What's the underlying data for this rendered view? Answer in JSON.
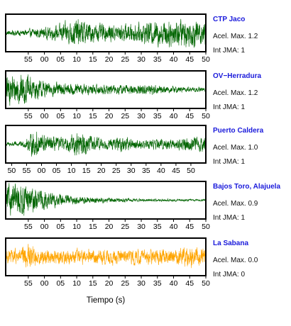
{
  "chart_data": {
    "type": "line",
    "xlabel": "Tiempo (s)",
    "grid": false,
    "panels": [
      {
        "station": "CTP Jaco",
        "accel_label": "Acel. Max. 1.2",
        "intensity_label": "Int JMA: 1",
        "color": "#006400",
        "tick_labels": [
          "55",
          "00",
          "05",
          "10",
          "15",
          "20",
          "25",
          "30",
          "35",
          "40",
          "45",
          "50"
        ],
        "x_range_s": [
          -7,
          55
        ],
        "amplitude_envelope": [
          [
            0,
            0.15
          ],
          [
            7,
            0.25
          ],
          [
            15,
            0.45
          ],
          [
            22,
            0.95
          ],
          [
            28,
            0.6
          ],
          [
            35,
            0.55
          ],
          [
            42,
            0.65
          ],
          [
            48,
            0.9
          ],
          [
            55,
            0.95
          ],
          [
            62,
            0.85
          ]
        ],
        "peak_amplitude": 0.95
      },
      {
        "station": "OV−Herradura",
        "accel_label": "Acel. Max. 1.2",
        "intensity_label": "Int JMA: 1",
        "color": "#006400",
        "tick_labels": [
          "55",
          "00",
          "05",
          "10",
          "15",
          "20",
          "25",
          "30",
          "35",
          "40",
          "45",
          "50"
        ],
        "x_range_s": [
          -7,
          55
        ],
        "amplitude_envelope": [
          [
            0,
            0.9
          ],
          [
            4,
            1.0
          ],
          [
            8,
            0.8
          ],
          [
            12,
            0.5
          ],
          [
            18,
            0.4
          ],
          [
            25,
            0.35
          ],
          [
            32,
            0.3
          ],
          [
            38,
            0.3
          ],
          [
            44,
            0.35
          ],
          [
            50,
            0.22
          ],
          [
            62,
            0.15
          ]
        ],
        "peak_amplitude": 1.0
      },
      {
        "station": "Puerto Caldera",
        "accel_label": "Acel. Max. 1.0",
        "intensity_label": "Int JMA: 1",
        "color": "#006400",
        "tick_labels": [
          "50",
          "55",
          "00",
          "05",
          "10",
          "15",
          "20",
          "25",
          "30",
          "35",
          "40",
          "45",
          "50"
        ],
        "x_range_s": [
          -12,
          55
        ],
        "amplitude_envelope": [
          [
            0,
            0.15
          ],
          [
            6,
            0.2
          ],
          [
            10,
            0.95
          ],
          [
            14,
            0.5
          ],
          [
            20,
            0.4
          ],
          [
            24,
            0.9
          ],
          [
            28,
            0.6
          ],
          [
            34,
            0.3
          ],
          [
            38,
            0.5
          ],
          [
            44,
            0.3
          ],
          [
            52,
            0.35
          ],
          [
            60,
            0.45
          ],
          [
            67,
            0.5
          ]
        ],
        "peak_amplitude": 0.95
      },
      {
        "station": "Bajos Toro, Alajuela",
        "accel_label": "Acel. Max. 0.9",
        "intensity_label": "Int JMA: 1",
        "color": "#006400",
        "tick_labels": [
          "55",
          "00",
          "05",
          "10",
          "15",
          "20",
          "25",
          "30",
          "35",
          "40",
          "45",
          "50"
        ],
        "x_range_s": [
          -7,
          55
        ],
        "amplitude_envelope": [
          [
            0,
            0.9
          ],
          [
            4,
            1.0
          ],
          [
            8,
            0.85
          ],
          [
            12,
            0.6
          ],
          [
            16,
            0.4
          ],
          [
            20,
            0.3
          ],
          [
            26,
            0.2
          ],
          [
            32,
            0.15
          ],
          [
            40,
            0.1
          ],
          [
            50,
            0.08
          ],
          [
            62,
            0.06
          ]
        ],
        "peak_amplitude": 1.0
      },
      {
        "station": "La Sabana",
        "accel_label": "Acel. Max. 0.0",
        "intensity_label": "Int JMA: 0",
        "color": "#FFA500",
        "tick_labels": [
          "55",
          "00",
          "05",
          "10",
          "15",
          "20",
          "25",
          "30",
          "35",
          "40",
          "45",
          "50"
        ],
        "x_range_s": [
          -7,
          55
        ],
        "amplitude_envelope": [
          [
            0,
            0.45
          ],
          [
            5,
            0.55
          ],
          [
            7,
            0.95
          ],
          [
            10,
            0.5
          ],
          [
            20,
            0.5
          ],
          [
            30,
            0.5
          ],
          [
            40,
            0.5
          ],
          [
            50,
            0.5
          ],
          [
            58,
            0.7
          ],
          [
            62,
            0.55
          ]
        ],
        "peak_amplitude": 0.95
      }
    ]
  }
}
